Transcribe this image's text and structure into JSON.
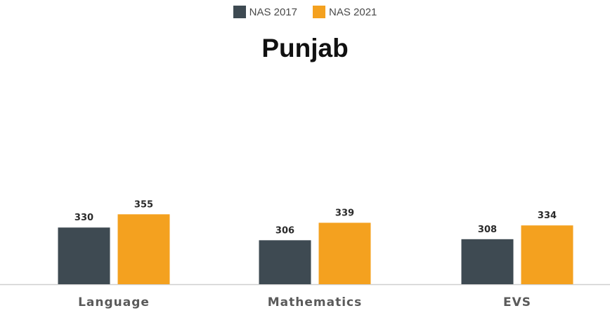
{
  "chart_data": {
    "type": "bar",
    "title": "Punjab",
    "categories": [
      "Language",
      "Mathematics",
      "EVS"
    ],
    "series": [
      {
        "name": "NAS 2017",
        "color": "#3e4a52",
        "values": [
          330,
          306,
          308
        ]
      },
      {
        "name": "NAS 2021",
        "color": "#f4a11f",
        "values": [
          355,
          339,
          334
        ]
      }
    ],
    "data_labels": true,
    "legend": "top",
    "grid": false,
    "y_axis_visible": false,
    "xlabel": "",
    "ylabel": ""
  }
}
